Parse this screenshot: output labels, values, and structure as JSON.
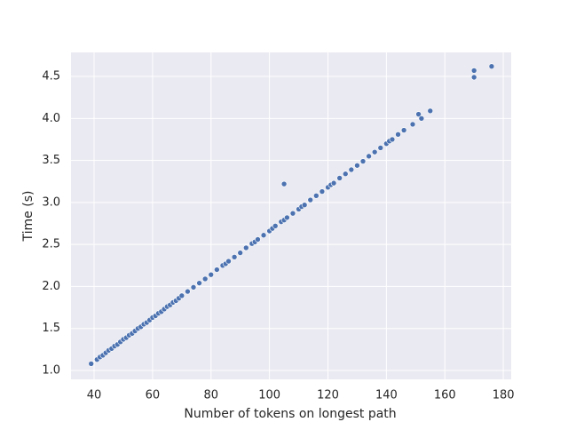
{
  "chart_data": {
    "type": "scatter",
    "xlabel": "Number of tokens on longest path",
    "ylabel": "Time (s)",
    "x": [
      39,
      41,
      42,
      43,
      44,
      45,
      46,
      47,
      48,
      49,
      50,
      51,
      52,
      53,
      54,
      55,
      56,
      57,
      58,
      59,
      60,
      61,
      62,
      63,
      64,
      65,
      66,
      67,
      68,
      69,
      70,
      72,
      74,
      76,
      78,
      80,
      82,
      84,
      85,
      86,
      88,
      90,
      92,
      94,
      95,
      96,
      98,
      100,
      101,
      102,
      104,
      105,
      106,
      108,
      110,
      111,
      112,
      114,
      116,
      118,
      120,
      121,
      122,
      124,
      126,
      128,
      130,
      132,
      134,
      136,
      138,
      140,
      141,
      142,
      144,
      146,
      149,
      151,
      152,
      155,
      170,
      170,
      176,
      105
    ],
    "series": [
      {
        "color": "#4c72b0",
        "values": [
          1.08,
          1.13,
          1.16,
          1.18,
          1.21,
          1.24,
          1.26,
          1.29,
          1.31,
          1.34,
          1.37,
          1.39,
          1.42,
          1.44,
          1.47,
          1.5,
          1.52,
          1.55,
          1.57,
          1.6,
          1.63,
          1.65,
          1.68,
          1.7,
          1.73,
          1.76,
          1.78,
          1.81,
          1.83,
          1.86,
          1.89,
          1.94,
          1.99,
          2.04,
          2.09,
          2.14,
          2.2,
          2.25,
          2.27,
          2.3,
          2.35,
          2.4,
          2.46,
          2.51,
          2.53,
          2.56,
          2.61,
          2.66,
          2.69,
          2.72,
          2.77,
          2.79,
          2.82,
          2.87,
          2.92,
          2.95,
          2.97,
          3.03,
          3.08,
          3.13,
          3.18,
          3.21,
          3.23,
          3.29,
          3.34,
          3.39,
          3.44,
          3.49,
          3.55,
          3.6,
          3.65,
          3.7,
          3.73,
          3.75,
          3.81,
          3.86,
          3.93,
          4.05,
          4.0,
          4.09,
          4.57,
          4.49,
          4.62,
          3.22
        ]
      }
    ],
    "xlim": [
      32.1,
      182.7
    ],
    "ylim": [
      0.894,
      4.786
    ],
    "xticks": [
      40,
      60,
      80,
      100,
      120,
      140,
      160,
      180
    ],
    "yticks": [
      {
        "value": 1,
        "label": "1.0"
      },
      1.5,
      {
        "value": 2,
        "label": "2.0"
      },
      2.5,
      {
        "value": 3,
        "label": "3.0"
      },
      3.5,
      {
        "value": 4,
        "label": "4.0"
      },
      4.5
    ],
    "grid": true
  }
}
